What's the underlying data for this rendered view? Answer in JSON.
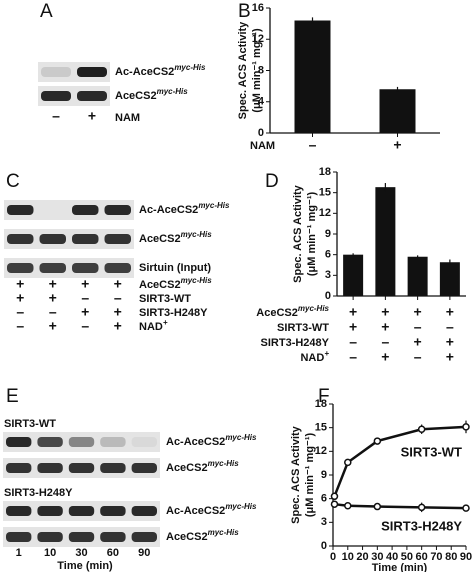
{
  "chart_data": [
    {
      "panel": "B",
      "type": "bar",
      "ylabel": "Spec. ACS Activity",
      "ylabel_units": "(μM min⁻¹ mg⁻¹)",
      "categories": [
        "–",
        "+"
      ],
      "xlabel": "NAM",
      "values": [
        14.4,
        5.6
      ],
      "errors": [
        0.4,
        0.3
      ],
      "color": "#111111",
      "ylim": [
        0,
        16
      ],
      "yticks": [
        0,
        4,
        8,
        12,
        16
      ]
    },
    {
      "panel": "D",
      "type": "bar",
      "ylabel": "Spec. ACS Activity",
      "ylabel_units": "(μM min⁻¹ mg⁻¹)",
      "values": [
        6.0,
        15.8,
        5.7,
        4.9
      ],
      "errors": [
        0.2,
        0.6,
        0.2,
        0.4
      ],
      "color": "#111111",
      "ylim": [
        0,
        18
      ],
      "yticks": [
        0,
        3,
        6,
        9,
        12,
        15,
        18
      ],
      "conditions": [
        {
          "name": {
            "main": "AceCS2",
            "sup": "myc-His"
          },
          "signs": [
            "+",
            "+",
            "+",
            "+"
          ]
        },
        {
          "name": {
            "main": "SIRT3-WT",
            "sup": ""
          },
          "signs": [
            "+",
            "+",
            "–",
            "–"
          ]
        },
        {
          "name": {
            "main": "SIRT3-H248Y",
            "sup": ""
          },
          "signs": [
            "–",
            "–",
            "+",
            "+"
          ]
        },
        {
          "name": {
            "main": "NAD",
            "sup": "+"
          },
          "signs": [
            "–",
            "+",
            "–",
            "+"
          ]
        }
      ]
    },
    {
      "panel": "F",
      "type": "line",
      "ylabel": "Spec. ACS Activity",
      "ylabel_units": "(μM min⁻¹ mg⁻¹)",
      "xlabel": "Time (min)",
      "x": [
        1,
        10,
        30,
        60,
        90
      ],
      "xlim": [
        0,
        90
      ],
      "xticks": [
        0,
        10,
        20,
        30,
        40,
        50,
        60,
        70,
        80,
        90
      ],
      "ylim": [
        0,
        18
      ],
      "yticks": [
        0,
        3,
        6,
        9,
        12,
        15,
        18
      ],
      "series": [
        {
          "name": "SIRT3-WT",
          "color": "#111111",
          "values": [
            6.3,
            10.6,
            13.3,
            14.8,
            15.1
          ],
          "errors": [
            0.3,
            0.4,
            0.4,
            0.6,
            0.8
          ]
        },
        {
          "name": "SIRT3-H248Y",
          "color": "#111111",
          "values": [
            5.3,
            5.1,
            5.0,
            4.9,
            4.8
          ],
          "errors": [
            0.3,
            0.3,
            0.3,
            0.6,
            0.4
          ]
        }
      ]
    }
  ],
  "blots": {
    "A": {
      "panel": "A",
      "rows": [
        {
          "main": "Ac-AceCS2",
          "sup": "myc-His"
        },
        {
          "main": "AceCS2",
          "sup": "myc-His"
        }
      ],
      "lanes": [
        "–",
        "+"
      ],
      "lane_label": "NAM"
    },
    "C": {
      "panel": "C",
      "rows": [
        {
          "main": "Ac-AceCS2",
          "sup": "myc-His"
        },
        {
          "main": "AceCS2",
          "sup": "myc-His"
        },
        {
          "main": "Sirtuin (Input)",
          "sup": ""
        }
      ],
      "conditions": [
        {
          "name": {
            "main": "AceCS2",
            "sup": "myc-His"
          },
          "signs": [
            "+",
            "+",
            "+",
            "+"
          ]
        },
        {
          "name": {
            "main": "SIRT3-WT",
            "sup": ""
          },
          "signs": [
            "+",
            "+",
            "–",
            "–"
          ]
        },
        {
          "name": {
            "main": "SIRT3-H248Y",
            "sup": ""
          },
          "signs": [
            "–",
            "–",
            "+",
            "+"
          ]
        },
        {
          "name": {
            "main": "NAD",
            "sup": "+"
          },
          "signs": [
            "–",
            "+",
            "–",
            "+"
          ]
        }
      ]
    },
    "E": {
      "panel": "E",
      "groups": [
        {
          "name": "SIRT3-WT",
          "rows": [
            {
              "main": "Ac-AceCS2",
              "sup": "myc-His"
            },
            {
              "main": "AceCS2",
              "sup": "myc-His"
            }
          ]
        },
        {
          "name": "SIRT3-H248Y",
          "rows": [
            {
              "main": "Ac-AceCS2",
              "sup": "myc-His"
            },
            {
              "main": "AceCS2",
              "sup": "myc-His"
            }
          ]
        }
      ],
      "lanes": [
        1,
        10,
        30,
        60,
        90
      ],
      "lane_label": "Time (min)"
    }
  }
}
